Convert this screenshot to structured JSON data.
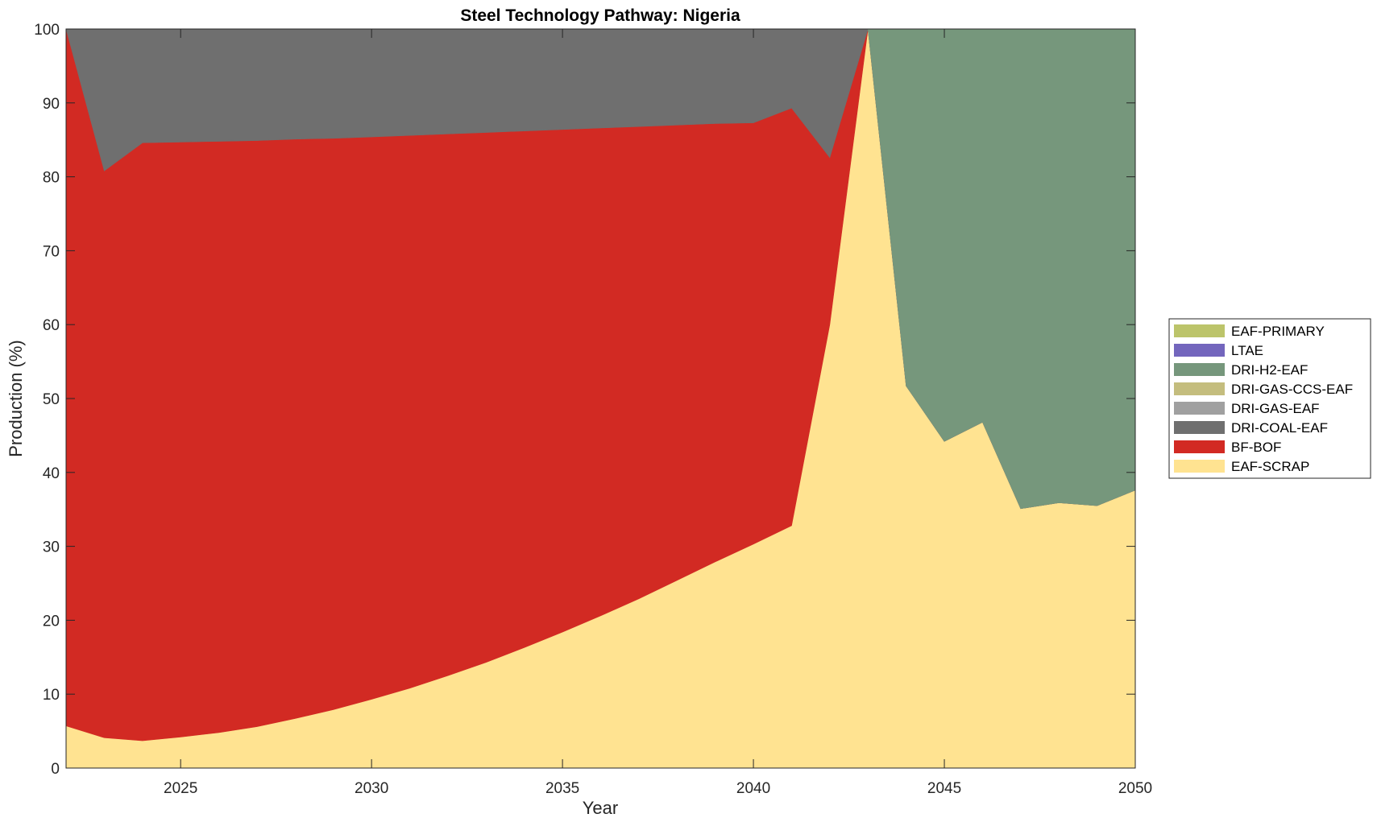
{
  "chart_data": {
    "type": "area",
    "stacked": true,
    "title": "Steel Technology Pathway: Nigeria",
    "xlabel": "Year",
    "ylabel": "Production (%)",
    "xlim": [
      2022,
      2050
    ],
    "ylim": [
      0,
      100
    ],
    "xticks": [
      2025,
      2030,
      2035,
      2040,
      2045,
      2050
    ],
    "yticks": [
      0,
      10,
      20,
      30,
      40,
      50,
      60,
      70,
      80,
      90,
      100
    ],
    "grid": false,
    "legend_position": "right",
    "x": [
      2022,
      2023,
      2024,
      2025,
      2026,
      2027,
      2028,
      2029,
      2030,
      2031,
      2032,
      2033,
      2034,
      2035,
      2036,
      2037,
      2038,
      2039,
      2040,
      2041,
      2042,
      2043,
      2044,
      2045,
      2046,
      2047,
      2048,
      2049,
      2050
    ],
    "series": [
      {
        "name": "EAF-SCRAP",
        "color": "#FFE391",
        "values": [
          5.7,
          4.1,
          3.7,
          4.2,
          4.8,
          5.6,
          6.7,
          7.9,
          9.3,
          10.8,
          12.5,
          14.3,
          16.3,
          18.4,
          20.6,
          22.9,
          25.4,
          27.9,
          30.3,
          32.8,
          60.0,
          100,
          51.7,
          44.2,
          46.8,
          35.1,
          35.9,
          35.5,
          37.6
        ]
      },
      {
        "name": "BF-BOF",
        "color": "#D22A23",
        "values": [
          94.3,
          76.7,
          80.9,
          80.5,
          80.0,
          79.3,
          78.4,
          77.3,
          76.1,
          74.8,
          73.3,
          71.7,
          69.9,
          68.0,
          66.0,
          63.9,
          61.6,
          59.3,
          57.0,
          56.5,
          22.6,
          0,
          0,
          0,
          0,
          0,
          0,
          0,
          0
        ]
      },
      {
        "name": "DRI-COAL-EAF",
        "color": "#6F6F6F",
        "values": [
          0,
          19.2,
          15.4,
          15.3,
          15.2,
          15.1,
          14.9,
          14.8,
          14.6,
          14.4,
          14.2,
          14.0,
          13.8,
          13.6,
          13.4,
          13.2,
          13.0,
          12.8,
          12.7,
          10.7,
          17.4,
          0,
          0,
          0,
          0,
          0,
          0,
          0,
          0
        ]
      },
      {
        "name": "DRI-GAS-EAF",
        "color": "#A0A0A0",
        "values": [
          0,
          0,
          0,
          0,
          0,
          0,
          0,
          0,
          0,
          0,
          0,
          0,
          0,
          0,
          0,
          0,
          0,
          0,
          0,
          0,
          0,
          0,
          0,
          0,
          0,
          0,
          0,
          0,
          0
        ]
      },
      {
        "name": "DRI-GAS-CCS-EAF",
        "color": "#C4BD7E",
        "values": [
          0,
          0,
          0,
          0,
          0,
          0,
          0,
          0,
          0,
          0,
          0,
          0,
          0,
          0,
          0,
          0,
          0,
          0,
          0,
          0,
          0,
          0,
          0,
          0,
          0,
          0,
          0,
          0,
          0
        ]
      },
      {
        "name": "DRI-H2-EAF",
        "color": "#76977C",
        "values": [
          0,
          0,
          0,
          0,
          0,
          0,
          0,
          0,
          0,
          0,
          0,
          0,
          0,
          0,
          0,
          0,
          0,
          0,
          0,
          0,
          0,
          0,
          48.3,
          55.8,
          53.2,
          64.9,
          64.1,
          64.5,
          62.4
        ]
      },
      {
        "name": "LTAE",
        "color": "#7366BD",
        "values": [
          0,
          0,
          0,
          0,
          0,
          0,
          0,
          0,
          0,
          0,
          0,
          0,
          0,
          0,
          0,
          0,
          0,
          0,
          0,
          0,
          0,
          0,
          0,
          0,
          0,
          0,
          0,
          0,
          0
        ]
      },
      {
        "name": "EAF-PRIMARY",
        "color": "#BCC46A",
        "values": [
          0,
          0,
          0,
          0,
          0,
          0,
          0,
          0,
          0,
          0,
          0,
          0,
          0,
          0,
          0,
          0,
          0,
          0,
          0,
          0,
          0,
          0,
          0,
          0,
          0,
          0,
          0,
          0,
          0
        ]
      }
    ],
    "legend_order": [
      "EAF-PRIMARY",
      "LTAE",
      "DRI-H2-EAF",
      "DRI-GAS-CCS-EAF",
      "DRI-GAS-EAF",
      "DRI-COAL-EAF",
      "BF-BOF",
      "EAF-SCRAP"
    ]
  }
}
